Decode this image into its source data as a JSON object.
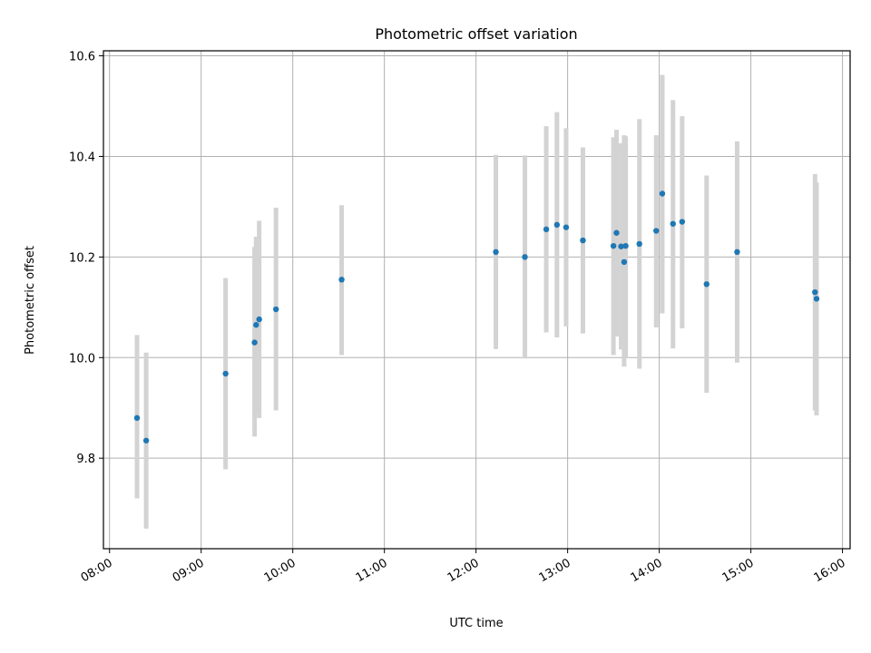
{
  "chart_data": {
    "type": "scatter",
    "title": "Photometric offset variation",
    "xlabel": "UTC time",
    "ylabel": "Photometric offset",
    "x_range": [
      "07:56",
      "16:05"
    ],
    "ylim": [
      9.62,
      10.61
    ],
    "x_ticks": [
      "08:00",
      "09:00",
      "10:00",
      "11:00",
      "12:00",
      "13:00",
      "14:00",
      "15:00",
      "16:00"
    ],
    "y_ticks": [
      "9.8",
      "10.0",
      "10.2",
      "10.4",
      "10.6"
    ],
    "grid": true,
    "colors": {
      "point": "#1f77b4",
      "errorbar": "#d3d3d3"
    },
    "points": [
      {
        "x": "08:18",
        "y": 9.88,
        "ylo": 9.72,
        "yhi": 10.045
      },
      {
        "x": "08:24",
        "y": 9.835,
        "ylo": 9.66,
        "yhi": 10.01
      },
      {
        "x": "09:16",
        "y": 9.968,
        "ylo": 9.778,
        "yhi": 10.158
      },
      {
        "x": "09:35",
        "y": 10.03,
        "ylo": 9.843,
        "yhi": 10.22
      },
      {
        "x": "09:36",
        "y": 10.065,
        "ylo": 9.89,
        "yhi": 10.24
      },
      {
        "x": "09:38",
        "y": 10.076,
        "ylo": 9.88,
        "yhi": 10.272
      },
      {
        "x": "09:49",
        "y": 10.096,
        "ylo": 9.895,
        "yhi": 10.298
      },
      {
        "x": "10:32",
        "y": 10.155,
        "ylo": 10.005,
        "yhi": 10.303
      },
      {
        "x": "12:13",
        "y": 10.21,
        "ylo": 10.017,
        "yhi": 10.403
      },
      {
        "x": "12:32",
        "y": 10.2,
        "ylo": 9.998,
        "yhi": 10.402
      },
      {
        "x": "12:46",
        "y": 10.255,
        "ylo": 10.05,
        "yhi": 10.46
      },
      {
        "x": "12:53",
        "y": 10.264,
        "ylo": 10.04,
        "yhi": 10.488
      },
      {
        "x": "12:59",
        "y": 10.259,
        "ylo": 10.062,
        "yhi": 10.456
      },
      {
        "x": "13:10",
        "y": 10.233,
        "ylo": 10.048,
        "yhi": 10.418
      },
      {
        "x": "13:30",
        "y": 10.222,
        "ylo": 10.005,
        "yhi": 10.438
      },
      {
        "x": "13:32",
        "y": 10.248,
        "ylo": 10.042,
        "yhi": 10.453
      },
      {
        "x": "13:35",
        "y": 10.221,
        "ylo": 10.016,
        "yhi": 10.426
      },
      {
        "x": "13:37",
        "y": 10.19,
        "ylo": 9.982,
        "yhi": 10.442
      },
      {
        "x": "13:38",
        "y": 10.222,
        "ylo": 10.0,
        "yhi": 10.44
      },
      {
        "x": "13:47",
        "y": 10.226,
        "ylo": 9.978,
        "yhi": 10.474
      },
      {
        "x": "13:58",
        "y": 10.252,
        "ylo": 10.06,
        "yhi": 10.442
      },
      {
        "x": "14:02",
        "y": 10.326,
        "ylo": 10.088,
        "yhi": 10.562
      },
      {
        "x": "14:09",
        "y": 10.266,
        "ylo": 10.018,
        "yhi": 10.512
      },
      {
        "x": "14:15",
        "y": 10.27,
        "ylo": 10.058,
        "yhi": 10.48
      },
      {
        "x": "14:31",
        "y": 10.146,
        "ylo": 9.93,
        "yhi": 10.362
      },
      {
        "x": "14:51",
        "y": 10.21,
        "ylo": 9.99,
        "yhi": 10.43
      },
      {
        "x": "15:42",
        "y": 10.13,
        "ylo": 9.895,
        "yhi": 10.365
      },
      {
        "x": "15:43",
        "y": 10.117,
        "ylo": 9.885,
        "yhi": 10.348
      }
    ]
  }
}
